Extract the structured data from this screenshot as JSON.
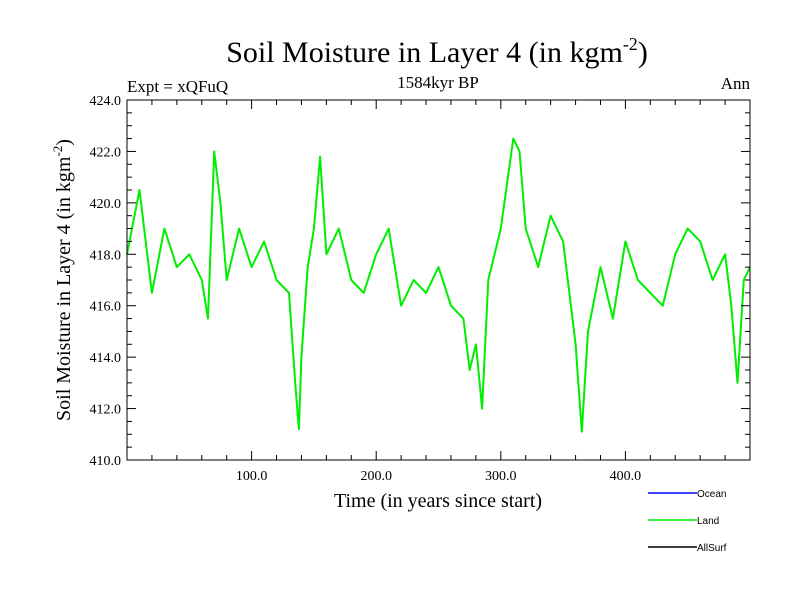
{
  "chart_data": {
    "type": "line",
    "title": "Soil Moisture in Layer 4 (in kgm",
    "title_sup": "-2",
    "title_close": ")",
    "subtitle": "1584kyr BP",
    "left_label": "Expt = xQFuQ",
    "right_label": "Ann",
    "xlabel": "Time (in years since start)",
    "ylabel": "Soil Moisture in Layer 4 (in kgm",
    "ylabel_sup": "-2",
    "ylabel_close": ")",
    "xlim": [
      0,
      500
    ],
    "ylim": [
      410,
      424
    ],
    "x_ticks": [
      100,
      200,
      300,
      400
    ],
    "x_tick_labels": [
      "100.0",
      "200.0",
      "300.0",
      "400.0"
    ],
    "y_ticks": [
      410,
      412,
      414,
      416,
      418,
      420,
      422,
      424
    ],
    "y_tick_labels": [
      "410.0",
      "412.0",
      "414.0",
      "416.0",
      "418.0",
      "420.0",
      "422.0",
      "424.0"
    ],
    "legend": [
      {
        "name": "Ocean",
        "color": "#0000ff"
      },
      {
        "name": "Land",
        "color": "#00ee00"
      },
      {
        "name": "AllSurf",
        "color": "#000000"
      }
    ],
    "series": [
      {
        "name": "Land",
        "color": "#00ee00",
        "x": [
          0,
          10,
          20,
          30,
          40,
          50,
          60,
          65,
          70,
          75,
          80,
          90,
          100,
          110,
          120,
          130,
          135,
          138,
          140,
          145,
          150,
          155,
          160,
          170,
          180,
          190,
          200,
          210,
          220,
          230,
          240,
          250,
          260,
          270,
          275,
          280,
          285,
          290,
          300,
          310,
          315,
          320,
          330,
          340,
          350,
          360,
          365,
          370,
          380,
          390,
          400,
          410,
          420,
          430,
          440,
          450,
          460,
          470,
          480,
          485,
          490,
          495,
          500
        ],
        "values": [
          418,
          420.5,
          416.5,
          419,
          417.5,
          418,
          417,
          415.5,
          422,
          420,
          417,
          419,
          417.5,
          418.5,
          417,
          416.5,
          413,
          411.2,
          414,
          417.5,
          419,
          421.8,
          418,
          419,
          417,
          416.5,
          418,
          419,
          416,
          417,
          416.5,
          417.5,
          416,
          415.5,
          413.5,
          414.5,
          412,
          417,
          419,
          422.5,
          422,
          419,
          417.5,
          419.5,
          418.5,
          414.5,
          411.1,
          415,
          417.5,
          415.5,
          418.5,
          417,
          416.5,
          416,
          418,
          419,
          418.5,
          417,
          418,
          416,
          413,
          417,
          417.5
        ]
      }
    ]
  }
}
